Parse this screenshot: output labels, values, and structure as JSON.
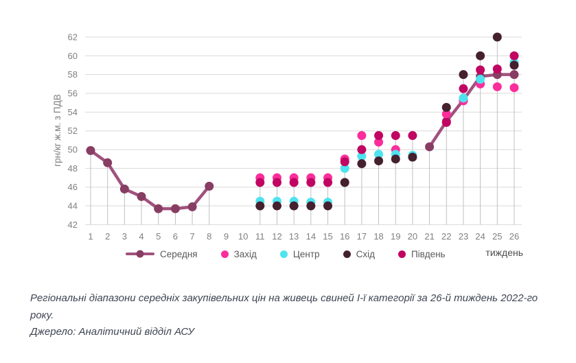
{
  "chart_data": {
    "type": "line+scatter",
    "title": "",
    "xlabel": "тиждень",
    "ylabel": "грн/кг ж.м. з ПДВ",
    "x": [
      1,
      2,
      3,
      4,
      5,
      6,
      7,
      8,
      9,
      10,
      11,
      12,
      13,
      14,
      15,
      16,
      17,
      18,
      19,
      20,
      21,
      22,
      23,
      24,
      25,
      26
    ],
    "ylim": [
      42,
      62
    ],
    "ytick_step": 2,
    "grid": "horizontal",
    "drop_lines": true,
    "legend_position": "bottom",
    "series": [
      {
        "name": "Середня",
        "type": "line",
        "color": "#a0527e",
        "marker_color": "#883d63",
        "values": [
          49.9,
          48.6,
          45.8,
          45,
          43.7,
          43.7,
          43.9,
          46.1,
          null,
          null,
          null,
          null,
          null,
          null,
          null,
          null,
          null,
          null,
          null,
          null,
          50.3,
          53,
          55.3,
          57.8,
          58,
          58
        ]
      },
      {
        "name": "Захід",
        "type": "scatter",
        "color": "#fb2e9b",
        "values": [
          null,
          null,
          null,
          null,
          null,
          null,
          null,
          null,
          null,
          null,
          47,
          47,
          47,
          47,
          47,
          49,
          51.5,
          50.8,
          50,
          null,
          null,
          53.8,
          55.2,
          57,
          56.7,
          56.6
        ]
      },
      {
        "name": "Центр",
        "type": "scatter",
        "color": "#4ee3ef",
        "values": [
          null,
          null,
          null,
          null,
          null,
          null,
          null,
          null,
          null,
          null,
          44.5,
          44.5,
          44.5,
          44.4,
          44.4,
          48,
          49.3,
          49.5,
          49.5,
          49.4,
          null,
          null,
          55.5,
          57.5,
          null,
          59.3
        ]
      },
      {
        "name": "Схід",
        "type": "scatter",
        "color": "#45202f",
        "values": [
          null,
          null,
          null,
          null,
          null,
          null,
          null,
          null,
          null,
          null,
          44,
          44,
          44,
          44,
          44,
          46.5,
          48.5,
          48.8,
          49,
          49.2,
          null,
          54.5,
          58,
          60,
          62,
          59
        ]
      },
      {
        "name": "Південь",
        "type": "scatter",
        "color": "#c00562",
        "values": [
          null,
          null,
          null,
          null,
          null,
          null,
          null,
          null,
          null,
          null,
          46.5,
          46.5,
          46.5,
          46.5,
          46.5,
          48.7,
          50,
          51.5,
          51.5,
          51.5,
          null,
          52.9,
          56.5,
          58.5,
          58.6,
          60
        ]
      }
    ],
    "colors": {
      "gridline": "#d9d9d9",
      "drop_line": "#c0c0c0",
      "tick_text": "#7f7f7f",
      "legend_text": "#595959",
      "axis_title_text": "#4d4d4d"
    }
  },
  "caption": {
    "text": "Регіональні діапазони середніх закупівельних цін на живець свиней І-ї категорії за 26-й тиждень 2022-го року.",
    "source": "Джерело: Аналітичний відділ АСУ"
  }
}
